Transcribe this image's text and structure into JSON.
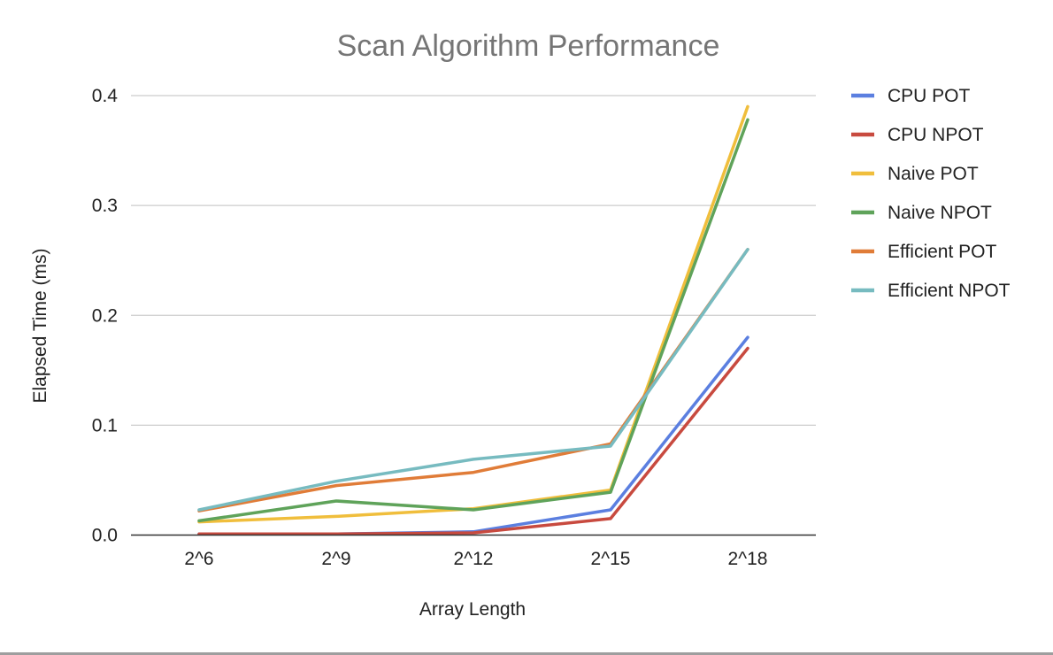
{
  "chart_data": {
    "type": "line",
    "title": "Scan Algorithm Performance",
    "xlabel": "Array Length",
    "ylabel": "Elapsed Time (ms)",
    "categories": [
      "2^6",
      "2^9",
      "2^12",
      "2^15",
      "2^18"
    ],
    "ylim": [
      0,
      0.4
    ],
    "yticks": [
      0.0,
      0.1,
      0.2,
      0.3,
      0.4
    ],
    "ytick_labels": [
      "0.0",
      "0.1",
      "0.2",
      "0.3",
      "0.4"
    ],
    "grid": true,
    "legend_position": "right",
    "series": [
      {
        "name": "CPU POT",
        "color": "#5b7fe0",
        "values": [
          0.001,
          0.001,
          0.003,
          0.023,
          0.18
        ]
      },
      {
        "name": "CPU NPOT",
        "color": "#c84a3f",
        "values": [
          0.001,
          0.001,
          0.002,
          0.015,
          0.17
        ]
      },
      {
        "name": "Naive POT",
        "color": "#f0be3c",
        "values": [
          0.012,
          0.017,
          0.024,
          0.041,
          0.39
        ]
      },
      {
        "name": "Naive NPOT",
        "color": "#5fa35a",
        "values": [
          0.013,
          0.031,
          0.023,
          0.039,
          0.378
        ]
      },
      {
        "name": "Efficient POT",
        "color": "#e07c38",
        "values": [
          0.022,
          0.045,
          0.057,
          0.083,
          0.26
        ]
      },
      {
        "name": "Efficient NPOT",
        "color": "#77bbc0",
        "values": [
          0.023,
          0.049,
          0.069,
          0.081,
          0.26
        ]
      }
    ]
  }
}
